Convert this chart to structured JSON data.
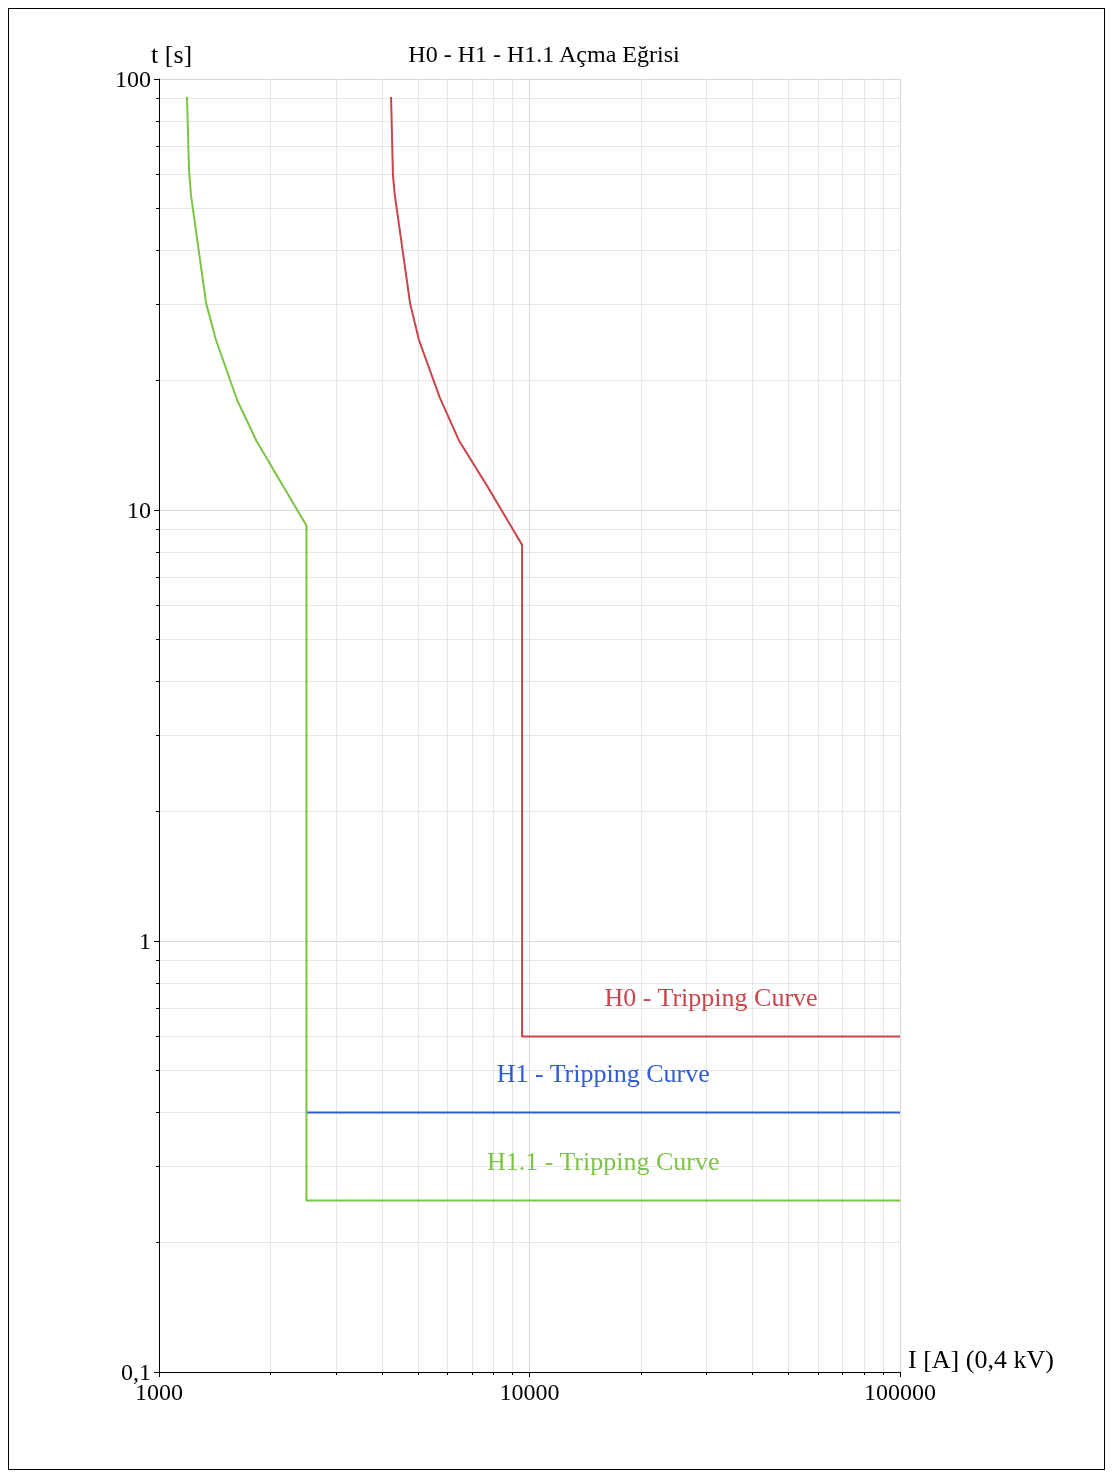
{
  "chart_data": {
    "type": "line",
    "title": "H0 - H1 - H1.1 Açma Eğrisi",
    "xlabel": "I [A] (0,4 kV)",
    "ylabel": "t [s]",
    "log": "xy",
    "grid": true,
    "legend": false,
    "marker": "none",
    "line_style": "solid",
    "xlim": [
      1000,
      100000
    ],
    "xticks": [
      1000,
      10000,
      100000
    ],
    "ylim": [
      0.1,
      100
    ],
    "yticks": [
      {
        "value": 0.1,
        "label": "0,1"
      },
      1,
      10,
      100
    ],
    "series": [
      {
        "name": "H0 - Tripping Curve",
        "color": "#c8464b",
        "x": [
          4230,
          4280,
          4330,
          4760,
          5030,
          5730,
          6450,
          7720,
          9550,
          9550,
          100000
        ],
        "values": [
          90.8,
          59.8,
          53.8,
          30.2,
          24.8,
          18.2,
          14.5,
          11.3,
          8.3,
          0.6,
          0.6
        ]
      },
      {
        "name": "H1 - Tripping Curve",
        "color": "#2f5bd9",
        "x": [
          2500,
          100000
        ],
        "values": [
          0.4,
          0.4
        ]
      },
      {
        "name": "H1.1 - Tripping Curve",
        "color": "#7cc444",
        "x": [
          1190,
          1205,
          1220,
          1340,
          1425,
          1625,
          1830,
          2500,
          2500,
          100000
        ],
        "values": [
          90.8,
          61.5,
          53.8,
          30.2,
          24.8,
          18,
          14.5,
          9.2,
          0.25,
          0.25
        ]
      }
    ]
  }
}
